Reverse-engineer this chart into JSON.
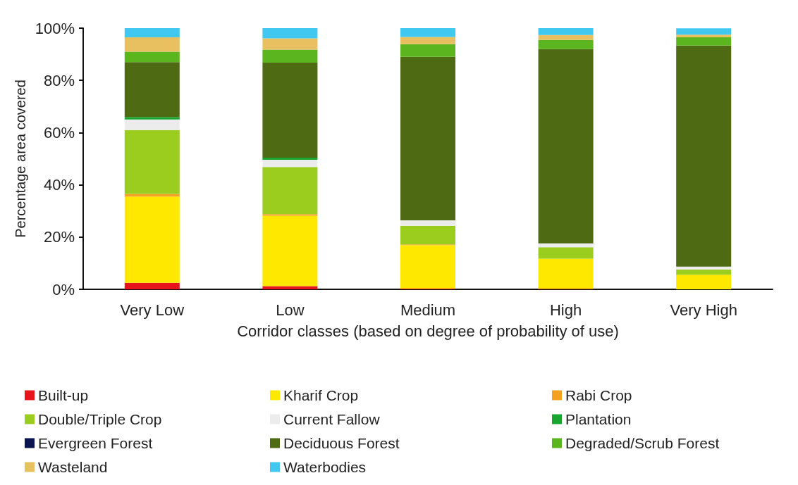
{
  "chart_data": {
    "type": "bar",
    "stacked": true,
    "xlabel": "Corridor classes (based on degree of probability of use)",
    "ylabel": "Percentage area covered",
    "categories": [
      "Very Low",
      "Low",
      "Medium",
      "High",
      "Very High"
    ],
    "series": [
      {
        "name": "Built-up",
        "color": "#e8141c",
        "values": [
          2.5,
          1.2,
          0.3,
          0.2,
          null
        ]
      },
      {
        "name": "Kharif Crop",
        "color": "#ffe800",
        "values": [
          33,
          27,
          16.6,
          11.5,
          5.6
        ]
      },
      {
        "name": "Rabi Crop",
        "color": "#f5a020",
        "values": [
          1,
          0.6,
          0.3,
          0,
          0
        ]
      },
      {
        "name": "Double/Triple Crop",
        "color": "#9acd1e",
        "values": [
          24.5,
          18,
          7.1,
          4.4,
          2
        ]
      },
      {
        "name": "Current Fallow",
        "color": "#ececec",
        "values": [
          4,
          2.8,
          2.1,
          1.5,
          1.1
        ]
      },
      {
        "name": "Plantation",
        "color": "#18a530",
        "values": [
          1,
          0.8,
          0,
          0,
          0
        ]
      },
      {
        "name": "Evergreen Forest",
        "color": "#0a1450",
        "values": [
          0,
          0,
          0,
          0,
          0
        ]
      },
      {
        "name": "Deciduous Forest",
        "color": "#4e6a12",
        "values": [
          21,
          36.4,
          62.6,
          74.4,
          84.6
        ]
      },
      {
        "name": "Degraded/Scrub Forest",
        "color": "#5ab51e",
        "values": [
          4,
          5,
          4.9,
          3.5,
          3.2
        ]
      },
      {
        "name": "Wasteland",
        "color": "#e8c060",
        "values": [
          5.5,
          4.3,
          2.7,
          1.9,
          1
        ]
      },
      {
        "name": "Waterbodies",
        "color": "#40c8f0",
        "values": [
          3.5,
          3.9,
          3.4,
          2.6,
          2.4
        ]
      }
    ],
    "ylim": [
      0,
      100
    ],
    "yticks": [
      {
        "value": 0,
        "label": "0%"
      },
      {
        "value": 20,
        "label": "20%"
      },
      {
        "value": 40,
        "label": "40%"
      },
      {
        "value": 60,
        "label": "60%"
      },
      {
        "value": 80,
        "label": "80%"
      },
      {
        "value": 100,
        "label": "100%"
      }
    ],
    "grid": false,
    "legend": "bottom"
  }
}
